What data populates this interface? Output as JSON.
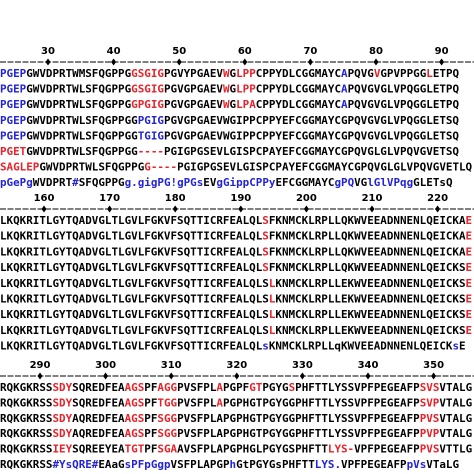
{
  "blocks": [
    {
      "ruler": [
        30,
        40,
        50,
        60,
        70,
        80,
        90
      ],
      "rows": [
        [
          [
            "PGEP",
            "#2323d8"
          ],
          [
            "GWVDPRTWMSFQGPPG",
            "#000000"
          ],
          [
            "GSGIG",
            "#e8222a"
          ],
          [
            "PGVYPGAEV",
            "#000000"
          ],
          [
            "W",
            "#e8222a"
          ],
          [
            "G",
            "#000000"
          ],
          [
            "LPP",
            "#e8222a"
          ],
          [
            "CPPYDLCGGMAYC",
            "#000000"
          ],
          [
            "A",
            "#2323d8"
          ],
          [
            "PQVG",
            "#000000"
          ],
          [
            "V",
            "#e8222a"
          ],
          [
            "GPVPPGG",
            "#000000"
          ],
          [
            "L",
            "#e8222a"
          ],
          [
            "ETPQ",
            "#000000"
          ]
        ],
        [
          [
            "PGEP",
            "#2323d8"
          ],
          [
            "GWVDPRTWLSFQGPPG",
            "#000000"
          ],
          [
            "GSGIG",
            "#e8222a"
          ],
          [
            "PGVGPGAEV",
            "#000000"
          ],
          [
            "W",
            "#e8222a"
          ],
          [
            "G",
            "#000000"
          ],
          [
            "LPP",
            "#e8222a"
          ],
          [
            "CPPYDLCGGMAYC",
            "#000000"
          ],
          [
            "A",
            "#2323d8"
          ],
          [
            "PQVGVGLVPQGGLETPQ",
            "#000000"
          ]
        ],
        [
          [
            "PGEP",
            "#2323d8"
          ],
          [
            "GWVDPRTWLSFQGPPG",
            "#000000"
          ],
          [
            "GPGIG",
            "#e8222a"
          ],
          [
            "PGVGPGAEV",
            "#000000"
          ],
          [
            "W",
            "#e8222a"
          ],
          [
            "G",
            "#000000"
          ],
          [
            "LPA",
            "#e8222a"
          ],
          [
            "CPPYDLCGGMAYC",
            "#000000"
          ],
          [
            "A",
            "#2323d8"
          ],
          [
            "PQVGVGLVPQGGLETPQ",
            "#000000"
          ]
        ],
        [
          [
            "PGEP",
            "#2323d8"
          ],
          [
            "GWVDPRTWLSFQGPPGG",
            "#000000"
          ],
          [
            "PGIG",
            "#2323d8"
          ],
          [
            "PGVGPGAEVWGIPPCPPYEFCGGMAYCGPQVGVGLVPQGGLETSQ",
            "#000000"
          ]
        ],
        [
          [
            "PGEP",
            "#2323d8"
          ],
          [
            "GWVDPRTWLSFQGPPGG",
            "#000000"
          ],
          [
            "TGIG",
            "#2323d8"
          ],
          [
            "PGVGPGAEVWGIPPCPPYEFCGGMAYCGPQVGVGLVPQGGLETSQ",
            "#000000"
          ]
        ],
        [
          [
            "PGET",
            "#e8222a"
          ],
          [
            "GWVDPRTWLSFQGPPGG",
            "#000000"
          ],
          [
            "----",
            "#e8222a"
          ],
          [
            "PGIGPGSEVLGISPCPAYEFCGGMAYCGPQVGLGLVPQVGVETSQ",
            "#000000"
          ]
        ],
        [
          [
            "SAGLEP",
            "#e8222a"
          ],
          [
            "GWVDPRTWLSFQGPPG",
            "#000000"
          ],
          [
            "G----",
            "#e8222a"
          ],
          [
            "PGIGPGSEVLGISPCPAYEFCGGMAYCGPQVGLGLVPQVGVETLQ",
            "#000000"
          ]
        ],
        [
          [
            "pGePg",
            "#2323d8"
          ],
          [
            "WVDPRT",
            "#000000"
          ],
          [
            "#",
            "#2323d8"
          ],
          [
            "SFQGPPG",
            "#000000"
          ],
          [
            "g.gigPG!gPGs",
            "#2323d8"
          ],
          [
            "EV",
            "#000000"
          ],
          [
            "gGippCPPy",
            "#2323d8"
          ],
          [
            "EFCGGMAYC",
            "#000000"
          ],
          [
            "gPQ",
            "#2323d8"
          ],
          [
            "VG",
            "#000000"
          ],
          [
            "lGlVPqg",
            "#2323d8"
          ],
          [
            "GLETsQ",
            "#000000"
          ]
        ]
      ]
    },
    {
      "ruler": [
        160,
        170,
        180,
        190,
        200,
        210,
        220
      ],
      "rows": [
        [
          [
            "LKQKRITLGYTQADVGLTLGVLFGKVFSQTTICRFEALQL",
            "#000000"
          ],
          [
            "S",
            "#e8222a"
          ],
          [
            "FKNMCKLRPLLQKWVEEADNNENLQEICKA",
            "#000000"
          ],
          [
            "E",
            "#e8222a"
          ]
        ],
        [
          [
            "LKQKRITLGYTQADVGLTLGVLFGKVFSQTTICRFEALQL",
            "#000000"
          ],
          [
            "S",
            "#e8222a"
          ],
          [
            "FKNMCKLRPLLQKWVEEADNNENLQEICKA",
            "#000000"
          ],
          [
            "E",
            "#e8222a"
          ]
        ],
        [
          [
            "LKQKRITLGYTQADVGLTLGVLFGKVFSQTTICRFEALQL",
            "#000000"
          ],
          [
            "S",
            "#e8222a"
          ],
          [
            "FKNMCKLRPLLQKWVEEADNNENLQEICKA",
            "#000000"
          ],
          [
            "E",
            "#e8222a"
          ]
        ],
        [
          [
            "LKQKRITLGYTQADVGLTLGVLFGKVFSQTTICRFEALQL",
            "#000000"
          ],
          [
            "S",
            "#e8222a"
          ],
          [
            "FKNMCKLRPLLQKWVEEADNNENLQEICKS",
            "#000000"
          ],
          [
            "E",
            "#e8222a"
          ]
        ],
        [
          [
            "LKQKRITLGYTQADVGLTLGVLFGKVFSQTTICRFEALQLS",
            "#000000"
          ],
          [
            "L",
            "#e8222a"
          ],
          [
            "KNMCKLRPLLEKWVEEADNNENLQEICKS",
            "#000000"
          ],
          [
            "E",
            "#e8222a"
          ]
        ],
        [
          [
            "LKQKRITLGYTQADVGLTLGVLFGKVFSQTTICRFEALQLS",
            "#000000"
          ],
          [
            "L",
            "#e8222a"
          ],
          [
            "KNMCKLRPLLEKWVEEADNNENLQEICKS",
            "#000000"
          ],
          [
            "E",
            "#e8222a"
          ]
        ],
        [
          [
            "LKQKRITLGYTQADVGLTLGVLFGKVFSQTTICRFEALQLS",
            "#000000"
          ],
          [
            "L",
            "#e8222a"
          ],
          [
            "KNMCKLRPLLEKWVEEADNNENLQEICKS",
            "#000000"
          ],
          [
            "E",
            "#e8222a"
          ]
        ],
        [
          [
            "LKQKRITLGYTQADVGLTLGVLFGKVFSQTTICRFEALQLS",
            "#000000"
          ],
          [
            "L",
            "#e8222a"
          ],
          [
            "KNMCKLRPLLEKWVEEADNNENLQEICKS",
            "#000000"
          ],
          [
            "E",
            "#e8222a"
          ]
        ],
        [
          [
            "LKQKRITLGYTQADVGLTLGVLFGKVFSQTTICRFEALQL",
            "#000000"
          ],
          [
            "s",
            "#2323d8"
          ],
          [
            "KNMCKLRPLLqKWVEEADNNENLQEICK",
            "#000000"
          ],
          [
            "s",
            "#2323d8"
          ],
          [
            "E",
            "#000000"
          ]
        ]
      ]
    },
    {
      "ruler": [
        290,
        300,
        310,
        320,
        330,
        340,
        350
      ],
      "rows": [
        [
          [
            "RQKGKRSS",
            "#000000"
          ],
          [
            "SDY",
            "#e8222a"
          ],
          [
            "SQREDFEA",
            "#000000"
          ],
          [
            "AGS",
            "#e8222a"
          ],
          [
            "PF",
            "#000000"
          ],
          [
            "AGG",
            "#e8222a"
          ],
          [
            "PVSFPL",
            "#000000"
          ],
          [
            "A",
            "#e8222a"
          ],
          [
            "PGPF",
            "#000000"
          ],
          [
            "GT",
            "#e8222a"
          ],
          [
            "PGYG",
            "#000000"
          ],
          [
            "S",
            "#e8222a"
          ],
          [
            "PHFTTLYSSVPFPEGEAFP",
            "#000000"
          ],
          [
            "SVS",
            "#e8222a"
          ],
          [
            "VTALG",
            "#000000"
          ]
        ],
        [
          [
            "RQKGKRSS",
            "#000000"
          ],
          [
            "SDY",
            "#e8222a"
          ],
          [
            "SQREDFEA",
            "#000000"
          ],
          [
            "AGS",
            "#e8222a"
          ],
          [
            "PF",
            "#000000"
          ],
          [
            "TGG",
            "#e8222a"
          ],
          [
            "PVSFPL",
            "#000000"
          ],
          [
            "A",
            "#e8222a"
          ],
          [
            "PGPHGTPGYGGPHFTTLYSSVPFPEGEAFP",
            "#000000"
          ],
          [
            "SVP",
            "#e8222a"
          ],
          [
            "VTALG",
            "#000000"
          ]
        ],
        [
          [
            "RQKGKRSS",
            "#000000"
          ],
          [
            "SDY",
            "#e8222a"
          ],
          [
            "AQREDFEA",
            "#000000"
          ],
          [
            "AGS",
            "#e8222a"
          ],
          [
            "PF",
            "#000000"
          ],
          [
            "SGG",
            "#e8222a"
          ],
          [
            "PVSFPLAPGPHGTPGYGGPHFTTLYSSVPFPEGEAFP",
            "#000000"
          ],
          [
            "PVS",
            "#e8222a"
          ],
          [
            "VTALG",
            "#000000"
          ]
        ],
        [
          [
            "RQKGKRSS",
            "#000000"
          ],
          [
            "SDY",
            "#e8222a"
          ],
          [
            "AQREDFEA",
            "#000000"
          ],
          [
            "AGS",
            "#e8222a"
          ],
          [
            "PF",
            "#000000"
          ],
          [
            "SGG",
            "#e8222a"
          ],
          [
            "PVSFPLAPGPHGTPGYGGPHFTTLYSSVPFPEGEAFP",
            "#000000"
          ],
          [
            "PVP",
            "#e8222a"
          ],
          [
            "VTALG",
            "#000000"
          ]
        ],
        [
          [
            "RQKGKRSS",
            "#000000"
          ],
          [
            "IEY",
            "#e8222a"
          ],
          [
            "SQREEYEA",
            "#000000"
          ],
          [
            "TGT",
            "#e8222a"
          ],
          [
            "PF",
            "#000000"
          ],
          [
            "SGA",
            "#e8222a"
          ],
          [
            "AVSFPLAPGPHGLPGYGSPHFTT",
            "#000000"
          ],
          [
            "LYS-",
            "#e8222a"
          ],
          [
            "VPFPEGEAFP",
            "#000000"
          ],
          [
            "PVS",
            "#e8222a"
          ],
          [
            "VTTLG",
            "#000000"
          ]
        ],
        [
          [
            "RQKGKRSS",
            "#000000"
          ],
          [
            "#YsQRE#",
            "#2323d8"
          ],
          [
            "EAaG",
            "#000000"
          ],
          [
            "sPFpGgp",
            "#2323d8"
          ],
          [
            "VSFPLAPGP",
            "#000000"
          ],
          [
            "h",
            "#2323d8"
          ],
          [
            "GtPGYGsPHFTT",
            "#000000"
          ],
          [
            "LYS.",
            "#2323d8"
          ],
          [
            "VPFPEGEAFP",
            "#000000"
          ],
          [
            "pVs",
            "#2323d8"
          ],
          [
            "VTaLG",
            "#000000"
          ]
        ]
      ]
    }
  ]
}
